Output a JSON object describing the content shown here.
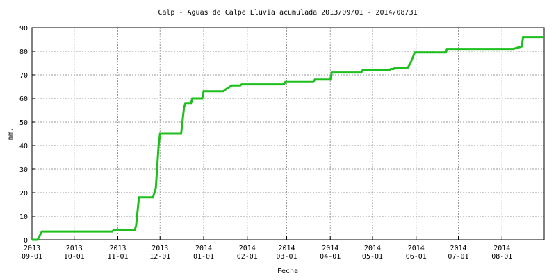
{
  "chart_data": {
    "type": "line",
    "title": "Calp - Aguas de Calpe Lluvia acumulada 2013/09/01 - 2014/08/31",
    "x_label": "Fecha",
    "y_label": "mm.",
    "grid": true,
    "xlim": [
      "2013-09-01",
      "2014-08-31"
    ],
    "ylim": [
      0,
      90
    ],
    "yticks": [
      0,
      10,
      20,
      30,
      40,
      50,
      60,
      70,
      80,
      90
    ],
    "xticks": [
      {
        "value": "2013-09-01",
        "label": [
          "2013",
          "09-01"
        ]
      },
      {
        "value": "2013-10-01",
        "label": [
          "2013",
          "10-01"
        ]
      },
      {
        "value": "2013-11-01",
        "label": [
          "2013",
          "11-01"
        ]
      },
      {
        "value": "2013-12-01",
        "label": [
          "2013",
          "12-01"
        ]
      },
      {
        "value": "2014-01-01",
        "label": [
          "2014",
          "01-01"
        ]
      },
      {
        "value": "2014-02-01",
        "label": [
          "2014",
          "02-01"
        ]
      },
      {
        "value": "2014-03-01",
        "label": [
          "2014",
          "03-01"
        ]
      },
      {
        "value": "2014-04-01",
        "label": [
          "2014",
          "04-01"
        ]
      },
      {
        "value": "2014-05-01",
        "label": [
          "2014",
          "05-01"
        ]
      },
      {
        "value": "2014-06-01",
        "label": [
          "2014",
          "06-01"
        ]
      },
      {
        "value": "2014-07-01",
        "label": [
          "2014",
          "07-01"
        ]
      },
      {
        "value": "2014-08-01",
        "label": [
          "2014",
          "08-01"
        ]
      }
    ],
    "x": [
      "2013-09-01",
      "2013-09-05",
      "2013-09-08",
      "2013-10-28",
      "2013-10-29",
      "2013-11-13",
      "2013-11-14",
      "2013-11-16",
      "2013-11-26",
      "2013-11-28",
      "2013-11-30",
      "2013-12-01",
      "2013-12-16",
      "2013-12-18",
      "2013-12-19",
      "2013-12-23",
      "2013-12-24",
      "2013-12-31",
      "2014-01-01",
      "2014-01-15",
      "2014-01-17",
      "2014-01-21",
      "2014-01-27",
      "2014-01-28",
      "2014-02-27",
      "2014-02-28",
      "2014-03-20",
      "2014-03-21",
      "2014-04-01",
      "2014-04-02",
      "2014-04-23",
      "2014-04-24",
      "2014-05-13",
      "2014-05-14",
      "2014-05-16",
      "2014-05-17",
      "2014-05-26",
      "2014-05-28",
      "2014-05-31",
      "2014-06-22",
      "2014-06-23",
      "2014-08-09",
      "2014-08-12",
      "2014-08-15",
      "2014-08-16",
      "2014-08-31"
    ],
    "series": [
      {
        "color": "#1fbf1f",
        "values": [
          0,
          0,
          3.5,
          3.5,
          4,
          4,
          6,
          18,
          18,
          22,
          40,
          45,
          45,
          56,
          58,
          58,
          60,
          60,
          63,
          63,
          64,
          65.5,
          65.5,
          66,
          66,
          67,
          67,
          68,
          68,
          71,
          71,
          72,
          72,
          72.5,
          72.5,
          73,
          73,
          75,
          79.5,
          79.5,
          81,
          81,
          81.5,
          82,
          86,
          86
        ]
      }
    ]
  }
}
